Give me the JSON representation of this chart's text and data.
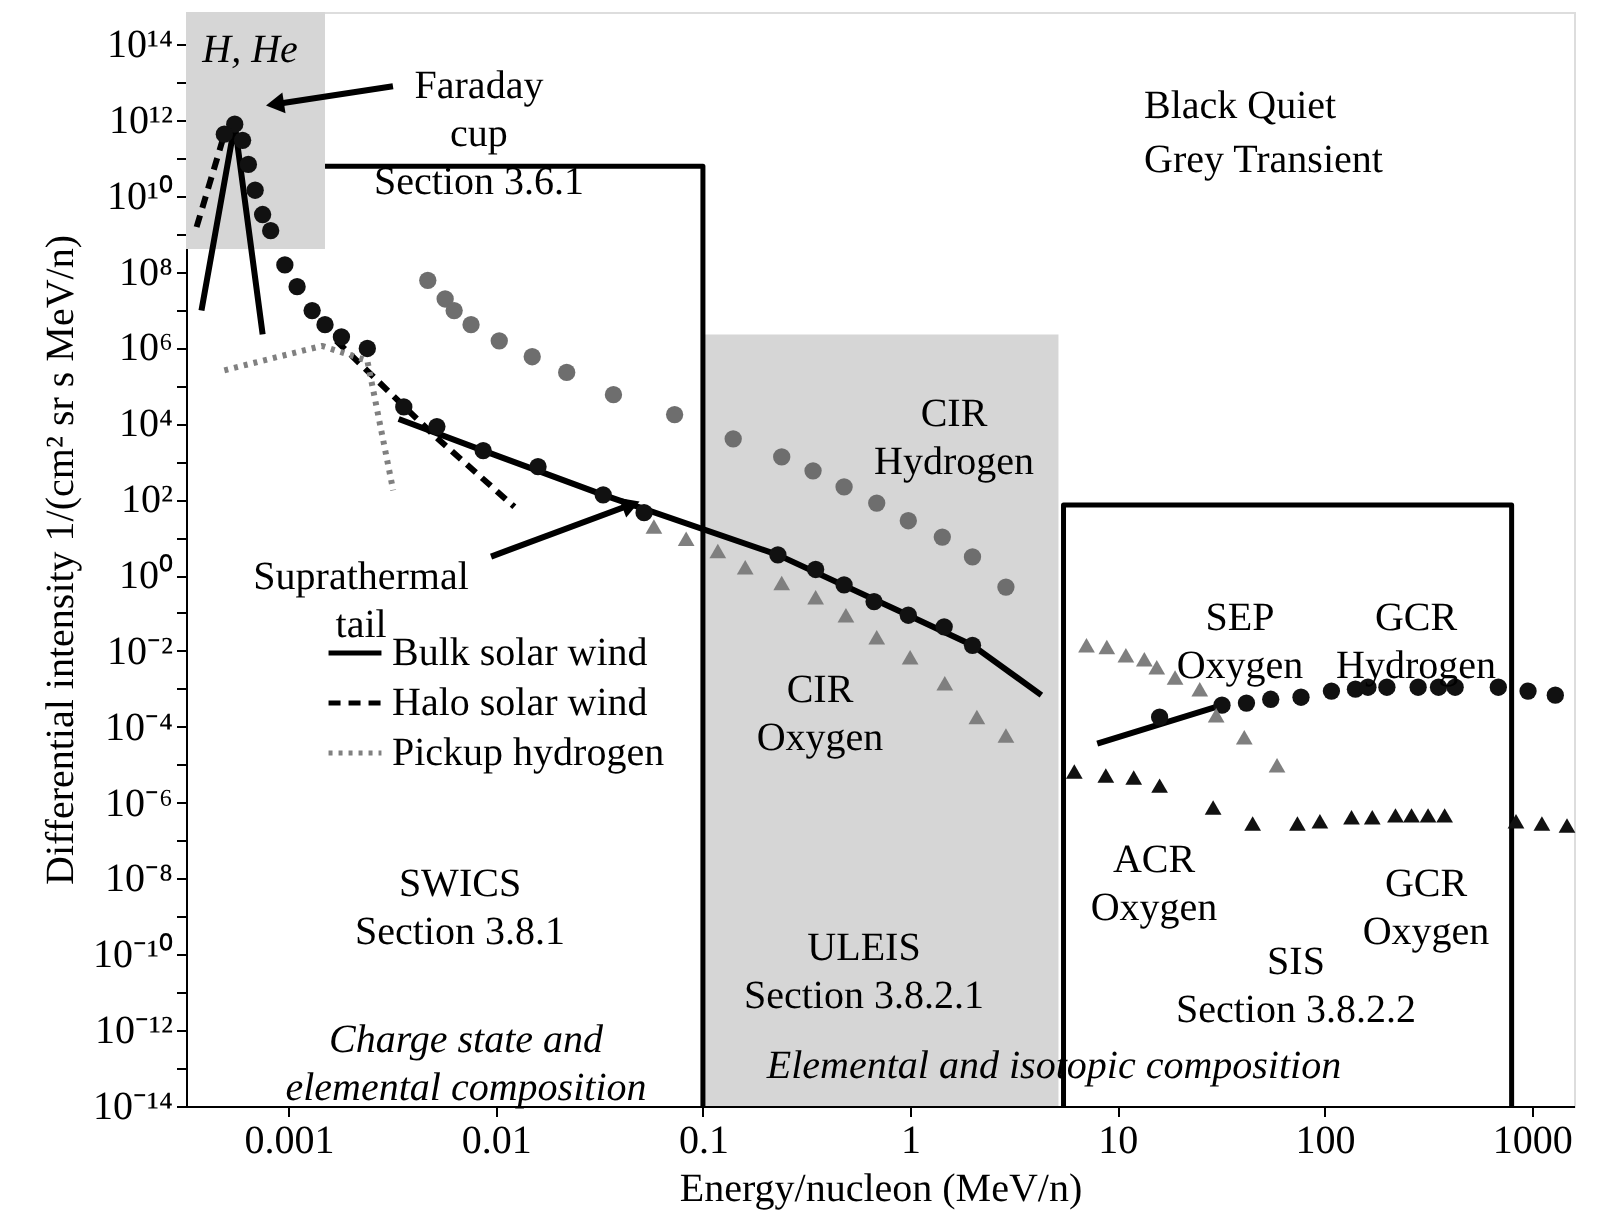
{
  "chart_data": {
    "type": "scatter",
    "xlabel": "Energy/nucleon (MeV/n)",
    "ylabel": "Differential intensity 1/(cm² sr s MeV/n)",
    "log": "xy",
    "legend": "left",
    "xlim": [
      0.00032,
      1600
    ],
    "ylim": [
      1e-14,
      700000000000000.0
    ],
    "xticks": [
      0.001,
      0.01,
      0.1,
      1,
      10,
      100,
      1000
    ],
    "yticks": [
      {
        "value": 1e-14,
        "label": "10⁻¹⁴"
      },
      {
        "value": 1e-13,
        "label": null
      },
      {
        "value": 1e-12,
        "label": "10⁻¹²"
      },
      {
        "value": 1e-11,
        "label": null
      },
      {
        "value": 1e-10,
        "label": "10⁻¹⁰"
      },
      {
        "value": 1e-09,
        "label": null
      },
      {
        "value": 1e-08,
        "label": "10⁻⁸"
      },
      {
        "value": 1e-07,
        "label": null
      },
      {
        "value": 1e-06,
        "label": "10⁻⁶"
      },
      {
        "value": 1e-05,
        "label": null
      },
      {
        "value": 0.0001,
        "label": "10⁻⁴"
      },
      {
        "value": 0.001,
        "label": null
      },
      {
        "value": 0.01,
        "label": "10⁻²"
      },
      {
        "value": 0.1,
        "label": null
      },
      {
        "value": 1,
        "label": "10⁰"
      },
      {
        "value": 10,
        "label": null
      },
      {
        "value": 100,
        "label": "10²"
      },
      {
        "value": 1000,
        "label": null
      },
      {
        "value": 10000.0,
        "label": "10⁴"
      },
      {
        "value": 100000.0,
        "label": null
      },
      {
        "value": 1000000.0,
        "label": "10⁶"
      },
      {
        "value": 10000000.0,
        "label": null
      },
      {
        "value": 100000000.0,
        "label": "10⁸"
      },
      {
        "value": 1000000000.0,
        "label": null
      },
      {
        "value": 10000000000.0,
        "label": "10¹⁰"
      },
      {
        "value": 100000000000.0,
        "label": null
      },
      {
        "value": 1000000000000.0,
        "label": "10¹²"
      },
      {
        "value": 10000000000000.0,
        "label": null
      },
      {
        "value": 100000000000000.0,
        "label": "10¹⁴"
      }
    ],
    "series": [
      {
        "type": "line",
        "color": "#d6d6d6",
        "x": [
          0.00032,
          0.0015
        ],
        "values": [
          460000000.0,
          460000000.0
        ],
        "lower": [
          460000000.0,
          460000000.0
        ],
        "upper": [
          700000000000000.0,
          700000000000000.0
        ]
      },
      {
        "type": "area",
        "color": "#d6d6d6",
        "x": [
          0.1,
          5.2
        ],
        "values": [
          2200000.0,
          2200000.0
        ]
      },
      {
        "type": "line",
        "color": "#000000",
        "line_style": "solid",
        "x": [
          0.0015,
          0.1,
          0.1
        ],
        "values": [
          60000000000.0,
          60000000000.0,
          1e-14
        ]
      },
      {
        "type": "line",
        "color": "#000000",
        "line_style": "solid",
        "x": [
          5.5,
          5.5,
          800,
          800
        ],
        "values": [
          1e-14,
          70,
          70,
          1e-14
        ]
      },
      {
        "name": "Bulk solar wind",
        "type": "line",
        "color": "#000000",
        "line_style": "solid",
        "x": [
          0.00038,
          0.00055,
          0.00075,
          0.002,
          0.0034,
          0.0087,
          0.033,
          0.23,
          0.98,
          2.0,
          4.3,
          6,
          8,
          32
        ],
        "values": [
          9400000.0,
          770000000000.0,
          2200000.0,
          null,
          13000.0,
          1900.0,
          130,
          3.4,
          0.087,
          0.014,
          0.00068,
          null,
          3.6e-05,
          0.00037
        ]
      },
      {
        "name": "Halo solar wind",
        "type": "line",
        "color": "#000000",
        "line_style": "dashed",
        "x": [
          0.00036,
          0.00049,
          0.001,
          0.0017,
          0.005,
          0.0123
        ],
        "values": [
          1500000000.0,
          420000000000.0,
          null,
          1500000.0,
          5000.0,
          63
        ]
      },
      {
        "name": "Pickup hydrogen",
        "type": "line",
        "color": "#808080",
        "line_style": "dotted",
        "x": [
          0.00049,
          0.00145,
          0.0024,
          0.0032
        ],
        "values": [
          250000.0,
          1100000.0,
          450000.0,
          170
        ]
      },
      {
        "color": "#111111",
        "marker": "circle",
        "x": [
          0.00055,
          0.00049,
          0.0006,
          0.00064,
          0.00069,
          0.00075,
          0.00082,
          0.00096,
          0.0011,
          0.0013,
          0.0015,
          0.0018,
          0.0024,
          0.0036,
          0.0052,
          0.0087,
          0.016,
          0.033,
          0.052,
          0.23,
          0.35,
          0.48,
          0.67,
          0.98,
          1.46,
          2.0,
          16,
          32,
          42,
          55,
          77,
          108,
          141,
          162,
          200,
          283,
          355,
          427,
          690,
          960,
          1300
        ],
        "values": [
          770000000000.0,
          420000000000.0,
          290000000000.0,
          67000000000.0,
          14000000000.0,
          3200000000.0,
          1200000000.0,
          150000000.0,
          40000000.0,
          9400000.0,
          4000000.0,
          1900000.0,
          940000.0,
          27000.0,
          8200.0,
          1900.0,
          720,
          130,
          44,
          3.4,
          1.4,
          0.55,
          0.2,
          0.087,
          0.043,
          0.014,
          0.00018,
          0.00037,
          0.00042,
          0.00053,
          0.0006,
          0.00087,
          0.00098,
          0.0011,
          0.0011,
          0.0011,
          0.0011,
          0.0011,
          0.0011,
          0.00087,
          0.00068
        ]
      },
      {
        "color": "#6e6e6e",
        "marker": "circle",
        "x": [
          0.0047,
          0.0057,
          0.0063,
          0.0076,
          0.0104,
          0.015,
          0.022,
          0.037,
          0.073,
          0.14,
          0.24,
          0.34,
          0.48,
          0.69,
          0.98,
          1.43,
          2.0,
          2.9
        ],
        "values": [
          59000000.0,
          19000000.0,
          9400000.0,
          4000000.0,
          1500000.0,
          570000.0,
          220000.0,
          57000.0,
          17000.0,
          3900.0,
          1300.0,
          560,
          210,
          79,
          27,
          10,
          3,
          0.48
        ]
      },
      {
        "color": "#7f7f7f",
        "marker": "triangle",
        "x": [
          0.058,
          0.083,
          0.118,
          0.16,
          0.24,
          0.35,
          0.49,
          0.69,
          1.0,
          1.47,
          2.1,
          2.9
        ],
        "values": [
          19,
          9,
          4.3,
          1.6,
          0.62,
          0.26,
          0.087,
          0.023,
          0.0068,
          0.0014,
          0.00018,
          5.9e-05
        ]
      },
      {
        "color": "#7f7f7f",
        "marker": "triangle",
        "x": [
          7.1,
          8.9,
          11,
          13.5,
          15.5,
          19,
          25,
          30,
          41,
          59
        ],
        "values": [
          0.014,
          0.0126,
          0.0077,
          0.006,
          0.0037,
          0.002,
          0.00098,
          0.0002,
          5.3e-05,
          9.6e-06
        ]
      },
      {
        "color": "#111111",
        "marker": "triangle",
        "x": [
          6.2,
          8.8,
          12,
          16,
          29,
          45,
          74,
          95,
          135,
          170,
          220,
          263,
          316,
          380,
          840,
          1120,
          1480
        ],
        "values": [
          6.6e-06,
          5.2e-06,
          4.6e-06,
          2.8e-06,
          7.4e-07,
          2.8e-07,
          2.8e-07,
          3.2e-07,
          4.1e-07,
          4.1e-07,
          4.6e-07,
          4.6e-07,
          4.6e-07,
          4.6e-07,
          3.2e-07,
          2.8e-07,
          2.5e-07
        ]
      }
    ],
    "annotations": [
      "H, He",
      {
        "text": "Faraday\ncup\nSection 3.6.1",
        "x": 0.00086,
        "y": 2600000000000.0
      },
      {
        "text": "Suprathermal\ntail",
        "x": 0.045,
        "y": 72
      },
      "CIR\nHydrogen",
      "CIR\nOxygen",
      "SEP\nOxygen",
      "GCR\nHydrogen",
      "ACR\nOxygen",
      "GCR\nOxygen",
      "SWICS\nSection 3.8.1",
      "ULEIS\nSection 3.8.2.1",
      "SIS\nSection 3.8.2.2",
      "Charge state and\nelemental composition",
      "Elemental and isotopic composition",
      "Black   Quiet",
      "Grey    Transient"
    ]
  }
}
